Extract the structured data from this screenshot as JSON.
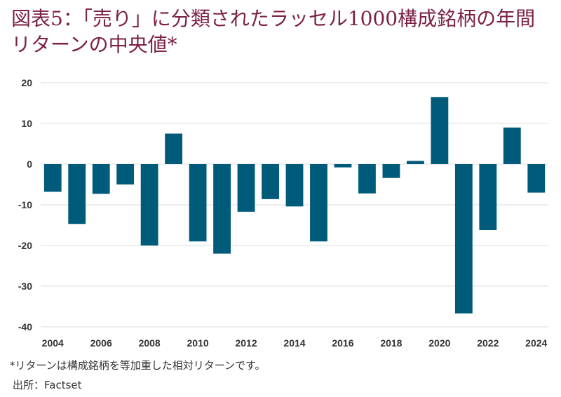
{
  "page": {
    "title": "図表5：「売り」に分類されたラッセル1000構成銘柄の年間リターンの中央値*",
    "footnote": "*リターンは構成銘柄を等加重した相対リターンです。",
    "source": "出所：Factset"
  },
  "colors": {
    "bar": "#005a7a",
    "grid": "#dcdcdc",
    "title": "#7b2245"
  },
  "chart_data": {
    "type": "bar",
    "title": "図表5：「売り」に分類されたラッセル1000構成銘柄の年間リターンの中央値*",
    "xlabel": "",
    "ylabel": "",
    "ylim": [
      -40,
      20
    ],
    "yticks": [
      20,
      10,
      0,
      -10,
      -20,
      -30,
      -40
    ],
    "yticklabels": [
      "20",
      "10",
      "0",
      "-10",
      "-20",
      "-30",
      "-40"
    ],
    "categories": [
      "2004",
      "2005",
      "2006",
      "2007",
      "2008",
      "2009",
      "2010",
      "2011",
      "2012",
      "2013",
      "2014",
      "2015",
      "2016",
      "2017",
      "2018",
      "2019",
      "2020",
      "2021",
      "2022",
      "2023",
      "2024"
    ],
    "xticklabels": [
      "2004",
      "2006",
      "2008",
      "2010",
      "2012",
      "2014",
      "2016",
      "2018",
      "2020",
      "2022",
      "2024"
    ],
    "values": [
      -6.8,
      -14.7,
      -7.3,
      -5.0,
      -20.0,
      7.5,
      -19.0,
      -22.0,
      -11.7,
      -8.6,
      -10.4,
      -19.0,
      -0.8,
      -7.2,
      -3.4,
      0.8,
      16.5,
      -36.7,
      -16.2,
      9.0,
      -7.0
    ],
    "grid": true,
    "legend": "none"
  }
}
